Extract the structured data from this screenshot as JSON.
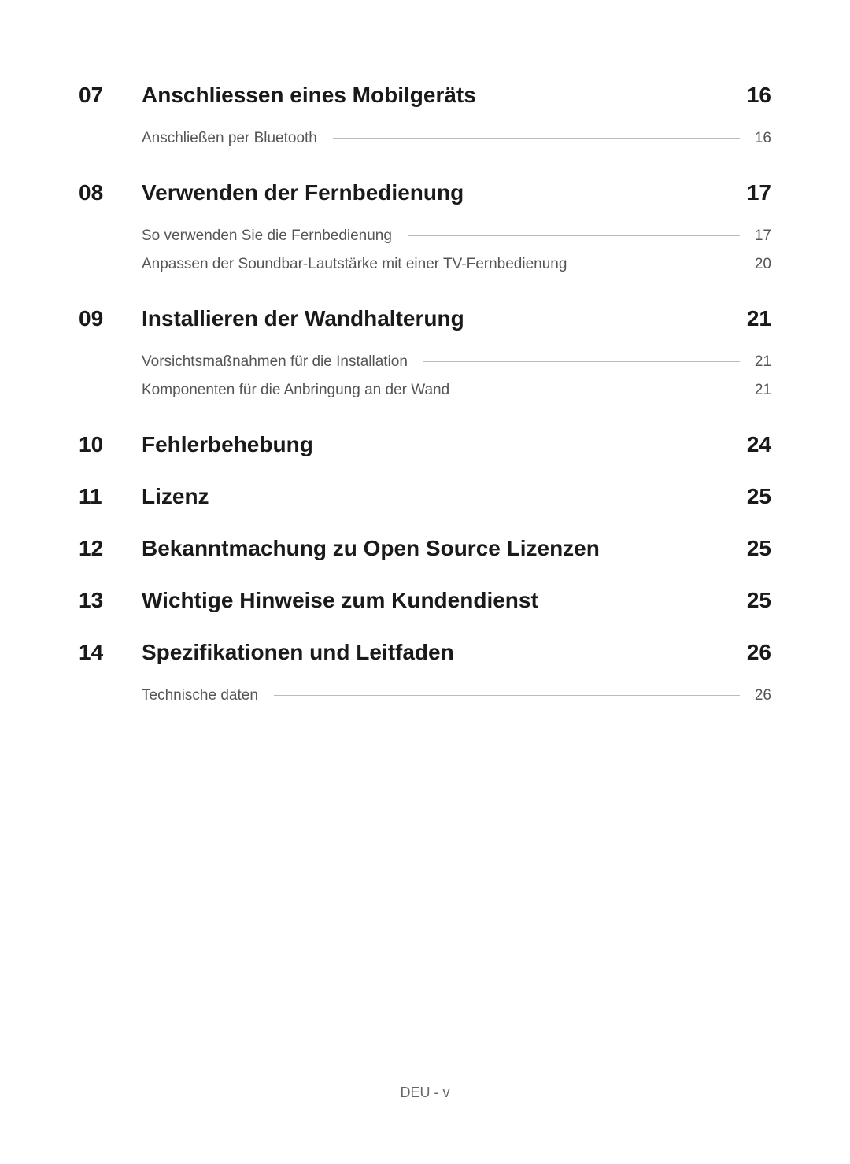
{
  "typography": {
    "section_num_fontsize": 28,
    "section_title_fontsize": 28,
    "section_page_fontsize": 28,
    "subitem_fontsize": 19,
    "footer_fontsize": 18,
    "heading_weight": 700,
    "subitem_weight": 400
  },
  "colors": {
    "background": "#ffffff",
    "heading_text": "#1a1a1a",
    "subitem_text": "#555555",
    "leader_line": "#bbbbbb",
    "footer_text": "#666666"
  },
  "toc": {
    "sections": [
      {
        "num": "07",
        "title": "Anschliessen eines Mobilgeräts",
        "page": "16",
        "subitems": [
          {
            "title": "Anschließen per Bluetooth",
            "page": "16"
          }
        ]
      },
      {
        "num": "08",
        "title": "Verwenden der Fernbedienung",
        "page": "17",
        "subitems": [
          {
            "title": "So verwenden Sie die Fernbedienung",
            "page": "17"
          },
          {
            "title": "Anpassen der Soundbar-Lautstärke mit einer TV-Fernbedienung",
            "page": "20"
          }
        ]
      },
      {
        "num": "09",
        "title": "Installieren der Wandhalterung",
        "page": "21",
        "subitems": [
          {
            "title": "Vorsichtsmaßnahmen für die Installation",
            "page": "21"
          },
          {
            "title": "Komponenten für die Anbringung an der Wand",
            "page": "21"
          }
        ]
      },
      {
        "num": "10",
        "title": "Fehlerbehebung",
        "page": "24",
        "subitems": []
      },
      {
        "num": "11",
        "title": "Lizenz",
        "page": "25",
        "subitems": []
      },
      {
        "num": "12",
        "title": "Bekanntmachung zu Open Source Lizenzen",
        "page": "25",
        "subitems": []
      },
      {
        "num": "13",
        "title": "Wichtige Hinweise zum Kundendienst",
        "page": "25",
        "subitems": []
      },
      {
        "num": "14",
        "title": "Spezifikationen und Leitfaden",
        "page": "26",
        "subitems": [
          {
            "title": "Technische daten",
            "page": "26"
          }
        ]
      }
    ]
  },
  "footer": {
    "text": "DEU - v"
  }
}
